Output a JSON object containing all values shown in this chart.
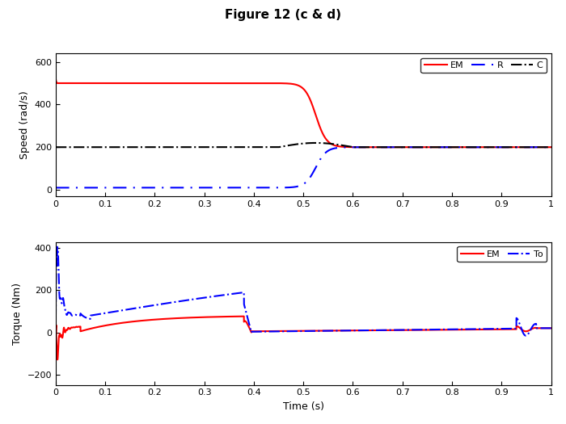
{
  "title": "Figure 12 (c & d)",
  "subplot1": {
    "ylabel": "Speed (rad/s)",
    "ylim": [
      -30,
      640
    ],
    "yticks": [
      0,
      200,
      400,
      600
    ],
    "xlim": [
      0,
      1
    ],
    "xticks": [
      0,
      0.1,
      0.2,
      0.3,
      0.4,
      0.5,
      0.6,
      0.7,
      0.8,
      0.9,
      1
    ]
  },
  "subplot2": {
    "ylabel": "Torque (Nm)",
    "xlabel": "Time (s)",
    "ylim": [
      -250,
      430
    ],
    "yticks": [
      -200,
      0,
      200,
      400
    ],
    "xlim": [
      0,
      1
    ],
    "xticks": [
      0,
      0.1,
      0.2,
      0.3,
      0.4,
      0.5,
      0.6,
      0.7,
      0.8,
      0.9,
      1
    ]
  },
  "colors": {
    "red": "#FF0000",
    "blue": "#0000FF",
    "black": "#000000"
  }
}
